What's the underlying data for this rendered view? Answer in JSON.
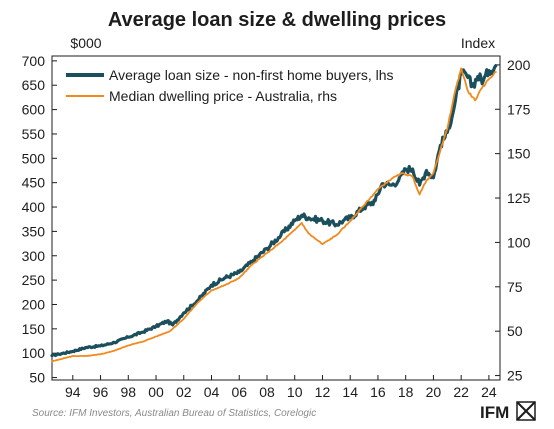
{
  "chart_data": {
    "type": "line",
    "title": "Average loan size & dwelling prices",
    "left_axis_unit": "$000",
    "right_axis_unit": "Index",
    "ylim_left": [
      45,
      710
    ],
    "ylim_right": [
      22.5,
      205
    ],
    "left_ticks": [
      50,
      100,
      150,
      200,
      250,
      300,
      350,
      400,
      450,
      500,
      550,
      600,
      650,
      700
    ],
    "right_ticks": [
      25,
      50,
      75,
      100,
      125,
      150,
      175,
      200
    ],
    "xlim": [
      1992.5,
      2024.8
    ],
    "x_ticks": [
      "94",
      "96",
      "98",
      "00",
      "02",
      "04",
      "06",
      "08",
      "10",
      "12",
      "14",
      "16",
      "18",
      "20",
      "22",
      "24"
    ],
    "x_tick_values": [
      1994,
      1996,
      1998,
      2000,
      2002,
      2004,
      2006,
      2008,
      2010,
      2012,
      2014,
      2016,
      2018,
      2020,
      2022,
      2024
    ],
    "grid": false,
    "legend_position": "top-left",
    "series": [
      {
        "name": "Average loan size - non-first home buyers, lhs",
        "axis": "left",
        "color": "#1c4f5c",
        "x": [
          1992.5,
          1993,
          1994,
          1995,
          1996,
          1997,
          1998,
          1999,
          2000,
          2000.8,
          2001.2,
          2002,
          2003,
          2004,
          2005,
          2006,
          2007,
          2008,
          2009,
          2010,
          2010.5,
          2011,
          2012,
          2013,
          2013.5,
          2014,
          2015,
          2015.8,
          2016.3,
          2017,
          2017.5,
          2018,
          2018.5,
          2019,
          2019.5,
          2020,
          2020.5,
          2021,
          2021.5,
          2022,
          2022.4,
          2022.8,
          2023.2,
          2023.6,
          2024,
          2024.5
        ],
        "values": [
          95,
          98,
          104,
          112,
          115,
          122,
          133,
          143,
          155,
          166,
          158,
          183,
          208,
          240,
          255,
          266,
          290,
          315,
          342,
          372,
          383,
          378,
          372,
          364,
          372,
          378,
          400,
          413,
          448,
          445,
          455,
          478,
          478,
          445,
          475,
          460,
          527,
          553,
          605,
          673,
          670,
          648,
          668,
          660,
          680,
          690
        ]
      },
      {
        "name": "Median dwelling price - Australia, rhs",
        "axis": "right",
        "color": "#f08a1e",
        "x": [
          1992.5,
          1993,
          1994,
          1995,
          1996,
          1997,
          1998,
          1999,
          2000,
          2001,
          2002,
          2003,
          2004,
          2005,
          2006,
          2007,
          2008,
          2009,
          2010,
          2010.5,
          2011,
          2012,
          2013,
          2014,
          2015,
          2016,
          2017,
          2017.8,
          2018.5,
          2019,
          2019.5,
          2020,
          2020.5,
          2021,
          2021.5,
          2022,
          2022.5,
          2023,
          2023.5,
          2024,
          2024.5
        ],
        "values": [
          33,
          34,
          36,
          36,
          37,
          39,
          42,
          44,
          47,
          50,
          57,
          66,
          73,
          76,
          80,
          88,
          94,
          100,
          107,
          111,
          105,
          99,
          104,
          112,
          121,
          130,
          136,
          139,
          137,
          127,
          135,
          139,
          152,
          164,
          183,
          198,
          185,
          180,
          187,
          192,
          196
        ]
      }
    ],
    "source": "Source: IFM Investors, Australian Bureau of Statistics, Corelogic",
    "logo_text": "IFM"
  },
  "colors": {
    "loan_series": "#1c4f5c",
    "price_series": "#f08a1e",
    "axis": "#1d1d1d",
    "source_text": "#8a8a8a"
  }
}
